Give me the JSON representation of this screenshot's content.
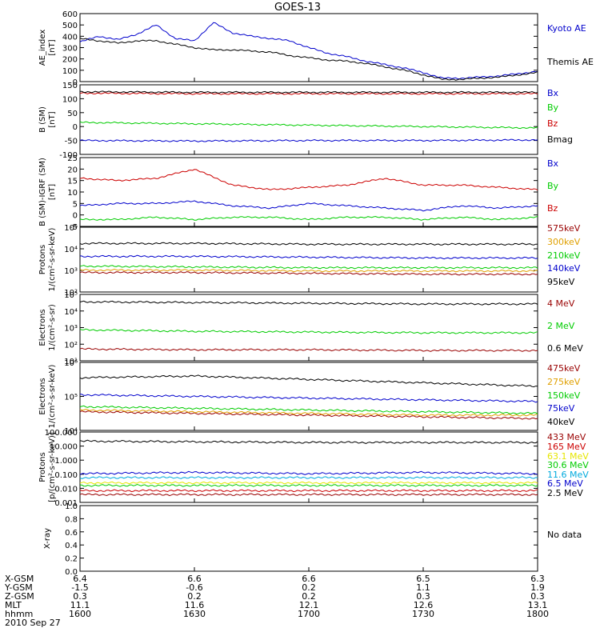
{
  "title": "GOES-13",
  "date_label": "2010 Sep 27",
  "colors": {
    "black": "#000000",
    "blue": "#0000cc",
    "red": "#cc0000",
    "green": "#00cc00",
    "orange": "#e0a000",
    "darkred": "#990000",
    "cyan": "#00aadd",
    "yellow": "#e6e600",
    "purple": "#990099"
  },
  "ephemeris": {
    "rows": [
      {
        "label": "X-GSM",
        "values": [
          "6.4",
          "6.6",
          "6.6",
          "6.5",
          "6.3"
        ]
      },
      {
        "label": "Y-GSM",
        "values": [
          "-1.5",
          "-0.6",
          "0.2",
          "1.1",
          "1.9"
        ]
      },
      {
        "label": "Z-GSM",
        "values": [
          "0.3",
          "0.2",
          "0.2",
          "0.3",
          "0.3"
        ]
      },
      {
        "label": "MLT",
        "values": [
          "11.1",
          "11.6",
          "12.1",
          "12.6",
          "13.1"
        ]
      },
      {
        "label": "hhmm",
        "values": [
          "1600",
          "1630",
          "1700",
          "1730",
          "1800"
        ]
      }
    ]
  },
  "chart_data": [
    {
      "type": "line",
      "ylabel": "AE_index\n[nT]",
      "yscale": "linear",
      "ylim": [
        0,
        600
      ],
      "yticks": [
        "600",
        "500",
        "400",
        "300",
        "200",
        "100",
        "0"
      ],
      "x": [
        0,
        5,
        10,
        15,
        20,
        25,
        30,
        35,
        40,
        45,
        50,
        55,
        60,
        65,
        70,
        75,
        80,
        85,
        90,
        95,
        100,
        105,
        110,
        115,
        120
      ],
      "series": [
        {
          "name": "Kyoto AE",
          "color": "blue",
          "values": [
            350,
            400,
            370,
            420,
            500,
            380,
            360,
            520,
            430,
            400,
            380,
            360,
            300,
            250,
            220,
            180,
            150,
            120,
            80,
            30,
            30,
            40,
            50,
            70,
            90
          ]
        },
        {
          "name": "Themis AE",
          "color": "black",
          "values": [
            380,
            360,
            340,
            360,
            360,
            330,
            300,
            280,
            280,
            270,
            260,
            230,
            210,
            190,
            180,
            160,
            130,
            100,
            60,
            20,
            20,
            30,
            40,
            60,
            80
          ]
        }
      ]
    },
    {
      "type": "line",
      "ylabel": "B (SM)\n[nT]",
      "yscale": "linear",
      "ylim": [
        -100,
        150
      ],
      "yticks": [
        "150",
        "100",
        "50",
        "0",
        "-50",
        "-100"
      ],
      "x": [
        0,
        30,
        60,
        90,
        120
      ],
      "series": [
        {
          "name": "Bx",
          "color": "blue",
          "values": [
            -50,
            -52,
            -50,
            -50,
            -48
          ]
        },
        {
          "name": "By",
          "color": "green",
          "values": [
            15,
            10,
            5,
            0,
            -5
          ]
        },
        {
          "name": "Bz",
          "color": "red",
          "values": [
            120,
            118,
            118,
            118,
            118
          ]
        },
        {
          "name": "Bmag",
          "color": "black",
          "values": [
            125,
            123,
            123,
            123,
            123
          ]
        }
      ]
    },
    {
      "type": "line",
      "ylabel": "B (SM)-IGRF (SM)\n[nT]",
      "yscale": "linear",
      "ylim": [
        -5,
        25
      ],
      "yticks": [
        "25",
        "20",
        "15",
        "10",
        "5",
        "0",
        "-5"
      ],
      "x": [
        0,
        10,
        20,
        30,
        40,
        50,
        60,
        70,
        80,
        90,
        100,
        110,
        120
      ],
      "series": [
        {
          "name": "Bx",
          "color": "blue",
          "values": [
            4,
            5,
            5,
            6,
            4,
            3,
            5,
            4,
            3,
            2,
            4,
            3,
            4
          ]
        },
        {
          "name": "By",
          "color": "green",
          "values": [
            -2,
            -2,
            -1,
            -2,
            -1,
            -1,
            -2,
            -1,
            -1,
            -2,
            -1,
            -2,
            -1
          ]
        },
        {
          "name": "Bz",
          "color": "red",
          "values": [
            16,
            15,
            16,
            20,
            13,
            11,
            12,
            13,
            16,
            13,
            13,
            12,
            11
          ]
        }
      ]
    },
    {
      "type": "line",
      "ylabel": "Protons\n1/(cm²-s-sr-keV)",
      "yscale": "log",
      "ylim": [
        1,
        5
      ],
      "yticks": [
        "10⁵",
        "10⁴",
        "10³",
        "10²"
      ],
      "x": [
        0,
        30,
        60,
        90,
        120
      ],
      "series": [
        {
          "name": "575keV",
          "color": "darkred",
          "values": [
            2.2,
            2.2,
            2.15,
            2.1,
            2.1
          ]
        },
        {
          "name": "300keV",
          "color": "orange",
          "values": [
            2.35,
            2.35,
            2.3,
            2.3,
            2.3
          ]
        },
        {
          "name": "210keV",
          "color": "green",
          "values": [
            2.6,
            2.55,
            2.5,
            2.5,
            2.5
          ]
        },
        {
          "name": "140keV",
          "color": "blue",
          "values": [
            3.2,
            3.2,
            3.15,
            3.1,
            3.1
          ]
        },
        {
          "name": "95keV",
          "color": "black",
          "values": [
            4.0,
            4.0,
            3.95,
            3.95,
            3.95
          ]
        }
      ]
    },
    {
      "type": "line",
      "ylabel": "Electrons\n1/(cm²-s-sr)",
      "yscale": "log",
      "ylim": [
        0.5,
        5
      ],
      "yticks": [
        "10⁵",
        "10⁴",
        "10³",
        "10²",
        "10¹"
      ],
      "x": [
        0,
        30,
        60,
        90,
        120
      ],
      "series": [
        {
          "name": "4 MeV",
          "color": "darkred",
          "values": [
            1.3,
            1.25,
            1.25,
            1.2,
            1.2
          ]
        },
        {
          "name": "2 MeV",
          "color": "green",
          "values": [
            2.6,
            2.5,
            2.45,
            2.4,
            2.4
          ]
        },
        {
          "name": "0.6 MeV",
          "color": "black",
          "values": [
            4.5,
            4.45,
            4.4,
            4.35,
            4.35
          ]
        }
      ]
    },
    {
      "type": "line",
      "ylabel": "Electrons\n1/(cm²-s-sr-keV)",
      "yscale": "log",
      "ylim": [
        4,
        6
      ],
      "yticks": [
        "10⁶",
        "10⁵",
        "10⁴"
      ],
      "x": [
        0,
        30,
        60,
        90,
        120
      ],
      "series": [
        {
          "name": "475keV",
          "color": "darkred",
          "values": [
            4.55,
            4.5,
            4.45,
            4.4,
            4.35
          ]
        },
        {
          "name": "275keV",
          "color": "orange",
          "values": [
            4.6,
            4.55,
            4.5,
            4.45,
            4.45
          ]
        },
        {
          "name": "150keV",
          "color": "green",
          "values": [
            4.7,
            4.65,
            4.6,
            4.55,
            4.5
          ]
        },
        {
          "name": "75keV",
          "color": "blue",
          "values": [
            5.05,
            5.0,
            4.95,
            4.9,
            4.85
          ]
        },
        {
          "name": "40keV",
          "color": "black",
          "values": [
            5.55,
            5.6,
            5.5,
            5.4,
            5.3
          ]
        }
      ]
    },
    {
      "type": "line",
      "ylabel": "Protons\n[p/(cm²-s-sr-keV)]",
      "yscale": "log",
      "ylim": [
        -3.2,
        2.2
      ],
      "yticks": [
        "100.000",
        "10.000",
        "1.000",
        "0.100",
        "0.010",
        "0.001"
      ],
      "x": [
        0,
        30,
        60,
        90,
        120
      ],
      "series": [
        {
          "name": "433 MeV",
          "color": "darkred",
          "values": [
            -2.6,
            -2.6,
            -2.6,
            -2.6,
            -2.6
          ]
        },
        {
          "name": "165 MeV",
          "color": "red",
          "values": [
            -2.3,
            -2.3,
            -2.3,
            -2.3,
            -2.3
          ]
        },
        {
          "name": "63.1 MeV",
          "color": "yellow",
          "values": [
            -1.7,
            -1.7,
            -1.7,
            -1.7,
            -1.7
          ]
        },
        {
          "name": "30.6 MeV",
          "color": "green",
          "values": [
            -1.9,
            -1.9,
            -1.9,
            -1.9,
            -1.9
          ]
        },
        {
          "name": "11.6 MeV",
          "color": "cyan",
          "values": [
            -1.3,
            -1.3,
            -1.3,
            -1.3,
            -1.3
          ]
        },
        {
          "name": "6.5 MeV",
          "color": "blue",
          "values": [
            -1.0,
            -0.9,
            -1.0,
            -0.9,
            -1.0
          ]
        },
        {
          "name": "2.5 MeV",
          "color": "black",
          "values": [
            1.5,
            1.45,
            1.4,
            1.4,
            1.4
          ]
        }
      ]
    },
    {
      "type": "line",
      "ylabel": "X-ray",
      "yscale": "linear",
      "ylim": [
        0,
        1
      ],
      "yticks": [
        "1.0",
        "0.8",
        "0.6",
        "0.4",
        "0.2",
        "0.0"
      ],
      "note": "No data",
      "x": [],
      "series": []
    }
  ]
}
